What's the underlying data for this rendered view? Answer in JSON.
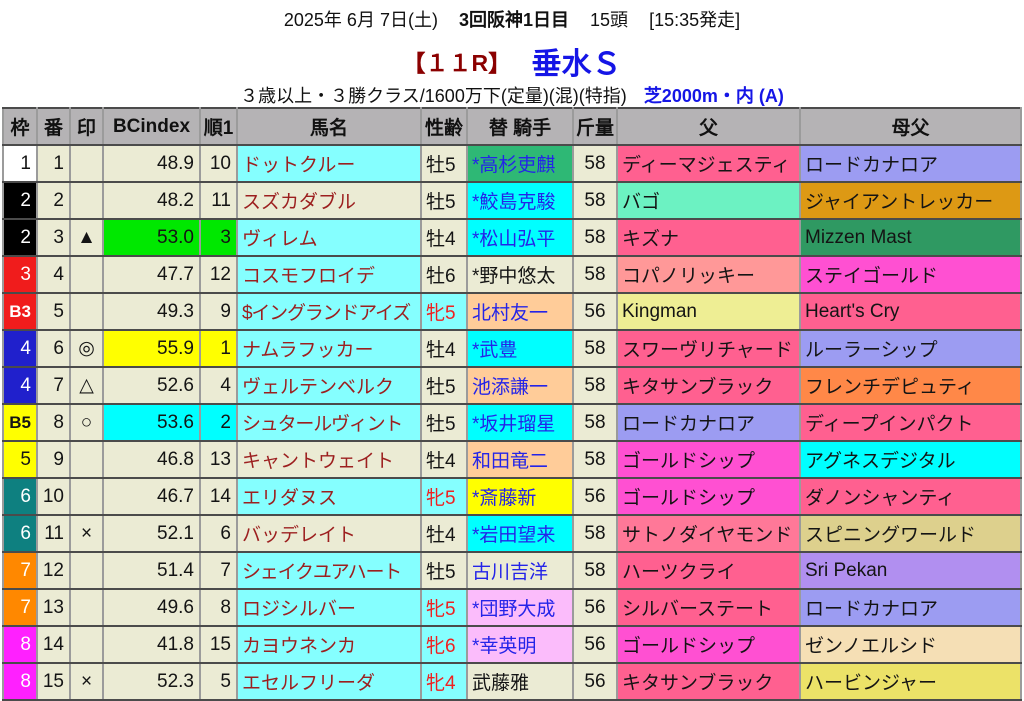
{
  "header": {
    "date": "2025年 6月 7日(土)",
    "meeting": "3回阪神1日目",
    "head_count": "15頭",
    "start_time": "[15:35発走]",
    "race_no": "【１１R】",
    "race_name": "垂水Ｓ",
    "conditions": "３歳以上・３勝クラス/1600万下(定量)(混)(特指)",
    "course": "芝2000m・内 (A)"
  },
  "colors": {
    "beige": "#ebebd4",
    "headerGray": "#b5b3b5",
    "cyanL": "#85ffff",
    "cyan": "#00ffff",
    "green": "#00e800",
    "yellow": "#ffff00",
    "peach": "#ffcc99",
    "pinkJ": "#fbbcfb",
    "greenJ": "#2eb875",
    "pink": "#ff6090",
    "pinkL": "#ff7898",
    "magentaP": "#ff50d2",
    "salmon": "#ff9898",
    "mint": "#6cf2c2",
    "paleYellow": "#eeee94",
    "periwinkle": "#9c9cf2",
    "goldenrod": "#dd9914",
    "seagreen": "#2f9962",
    "orangeS": "#ff8848",
    "khaki": "#ddd08d",
    "purpleS": "#b18ff0",
    "wheat": "#f5dfb5",
    "yellowS": "#ece268",
    "wakuWhite": "#ffffff",
    "wakuBlack": "#000000",
    "wakuRed": "#f01c1c",
    "wakuBlue": "#2020cc",
    "wakuYellow": "#ffff00",
    "wakuGreen": "#0e8080",
    "wakuOrange": "#ff8800",
    "wakuPink": "#ff20ff",
    "white": "#ffffff",
    "textMaroon": "#9c1f1f",
    "textBlue": "#2424e8",
    "textRed": "#f02020",
    "textBlack": "#141414",
    "titleRed": "#8b0000",
    "titleBlue": "#1515e6"
  },
  "table": {
    "columns": [
      "枠",
      "番",
      "印",
      "BCindex",
      "順1",
      "馬名",
      "性齢",
      "替 騎手",
      "斤量",
      "父",
      "母父"
    ],
    "column_names": [
      "frame",
      "number",
      "mark",
      "bcindex",
      "rank",
      "horse-name",
      "sex-age",
      "jockey",
      "weight",
      "sire",
      "dam-sire"
    ],
    "rows": [
      {
        "waku": {
          "t": "1",
          "bg": "wakuWhite",
          "fg": "textBlack"
        },
        "num": "1",
        "mark": "",
        "bc": {
          "t": "48.9",
          "bg": null
        },
        "rank": {
          "t": "10",
          "bg": null
        },
        "name": {
          "t": "ドットクルー",
          "bg": "cyanL"
        },
        "sexage": {
          "t": "牡5",
          "female": false
        },
        "jockey": {
          "t": "*高杉吏麒",
          "bg": "greenJ",
          "fg": "textBlue"
        },
        "weight": "58",
        "sire": {
          "t": "ディーマジェスティ",
          "bg": "pink"
        },
        "damsire": {
          "t": "ロードカナロア",
          "bg": "periwinkle"
        }
      },
      {
        "waku": {
          "t": "2",
          "bg": "wakuBlack",
          "fg": "white"
        },
        "num": "2",
        "mark": "",
        "bc": {
          "t": "48.2",
          "bg": null
        },
        "rank": {
          "t": "11",
          "bg": null
        },
        "name": {
          "t": "スズカダブル",
          "bg": null
        },
        "sexage": {
          "t": "牡5",
          "female": false
        },
        "jockey": {
          "t": "*鮫島克駿",
          "bg": "cyan",
          "fg": "textBlue"
        },
        "weight": "58",
        "sire": {
          "t": "バゴ",
          "bg": "mint"
        },
        "damsire": {
          "t": "ジャイアントレッカー",
          "bg": "goldenrod"
        }
      },
      {
        "waku": {
          "t": "2",
          "bg": "wakuBlack",
          "fg": "white"
        },
        "num": "3",
        "mark": "▲",
        "bc": {
          "t": "53.0",
          "bg": "green"
        },
        "rank": {
          "t": "3",
          "bg": "green"
        },
        "name": {
          "t": "ヴィレム",
          "bg": "cyanL"
        },
        "sexage": {
          "t": "牡4",
          "female": false
        },
        "jockey": {
          "t": "*松山弘平",
          "bg": "cyan",
          "fg": "textBlue"
        },
        "weight": "58",
        "sire": {
          "t": "キズナ",
          "bg": "pink"
        },
        "damsire": {
          "t": "Mizzen Mast",
          "bg": "seagreen"
        }
      },
      {
        "waku": {
          "t": "3",
          "bg": "wakuRed",
          "fg": "white"
        },
        "num": "4",
        "mark": "",
        "bc": {
          "t": "47.7",
          "bg": null
        },
        "rank": {
          "t": "12",
          "bg": null
        },
        "name": {
          "t": "コスモフロイデ",
          "bg": "cyanL"
        },
        "sexage": {
          "t": "牡6",
          "female": false
        },
        "jockey": {
          "t": "*野中悠太",
          "bg": null,
          "fg": "textBlack"
        },
        "weight": "58",
        "sire": {
          "t": "コパノリッキー",
          "bg": "salmon"
        },
        "damsire": {
          "t": "ステイゴールド",
          "bg": "magentaP"
        }
      },
      {
        "waku": {
          "t": "B3",
          "bg": "wakuRed",
          "fg": "white"
        },
        "num": "5",
        "mark": "",
        "bc": {
          "t": "49.3",
          "bg": null
        },
        "rank": {
          "t": "9",
          "bg": null
        },
        "name": {
          "t": "$イングランドアイズ",
          "bg": "cyanL"
        },
        "sexage": {
          "t": "牝5",
          "female": true
        },
        "jockey": {
          "t": "北村友一",
          "bg": "peach",
          "fg": "textBlue"
        },
        "weight": "56",
        "sire": {
          "t": "Kingman",
          "bg": "paleYellow"
        },
        "damsire": {
          "t": "Heart's Cry",
          "bg": "pink"
        }
      },
      {
        "waku": {
          "t": "4",
          "bg": "wakuBlue",
          "fg": "white"
        },
        "num": "6",
        "mark": "◎",
        "bc": {
          "t": "55.9",
          "bg": "yellow"
        },
        "rank": {
          "t": "1",
          "bg": "yellow"
        },
        "name": {
          "t": "ナムラフッカー",
          "bg": "cyanL"
        },
        "sexage": {
          "t": "牡4",
          "female": false
        },
        "jockey": {
          "t": "*武豊",
          "bg": "cyan",
          "fg": "textBlue"
        },
        "weight": "58",
        "sire": {
          "t": "スワーヴリチャード",
          "bg": "pink"
        },
        "damsire": {
          "t": "ルーラーシップ",
          "bg": "periwinkle"
        }
      },
      {
        "waku": {
          "t": "4",
          "bg": "wakuBlue",
          "fg": "white"
        },
        "num": "7",
        "mark": "△",
        "bc": {
          "t": "52.6",
          "bg": null
        },
        "rank": {
          "t": "4",
          "bg": null
        },
        "name": {
          "t": "ヴェルテンベルク",
          "bg": "cyanL"
        },
        "sexage": {
          "t": "牡5",
          "female": false
        },
        "jockey": {
          "t": "池添謙一",
          "bg": "peach",
          "fg": "textBlue"
        },
        "weight": "58",
        "sire": {
          "t": "キタサンブラック",
          "bg": "pink"
        },
        "damsire": {
          "t": "フレンチデピュティ",
          "bg": "orangeS"
        }
      },
      {
        "waku": {
          "t": "B5",
          "bg": "wakuYellow",
          "fg": "textBlack"
        },
        "num": "8",
        "mark": "○",
        "bc": {
          "t": "53.6",
          "bg": "cyan"
        },
        "rank": {
          "t": "2",
          "bg": "cyan"
        },
        "name": {
          "t": "シュタールヴィント",
          "bg": "cyanL"
        },
        "sexage": {
          "t": "牡5",
          "female": false
        },
        "jockey": {
          "t": "*坂井瑠星",
          "bg": "cyan",
          "fg": "textBlue"
        },
        "weight": "58",
        "sire": {
          "t": "ロードカナロア",
          "bg": "periwinkle"
        },
        "damsire": {
          "t": "ディープインパクト",
          "bg": "pink"
        }
      },
      {
        "waku": {
          "t": "5",
          "bg": "wakuYellow",
          "fg": "textBlack"
        },
        "num": "9",
        "mark": "",
        "bc": {
          "t": "46.8",
          "bg": null
        },
        "rank": {
          "t": "13",
          "bg": null
        },
        "name": {
          "t": "キャントウェイト",
          "bg": null
        },
        "sexage": {
          "t": "牡4",
          "female": false
        },
        "jockey": {
          "t": "和田竜二",
          "bg": "peach",
          "fg": "textBlue"
        },
        "weight": "58",
        "sire": {
          "t": "ゴールドシップ",
          "bg": "magentaP"
        },
        "damsire": {
          "t": "アグネスデジタル",
          "bg": "cyan"
        }
      },
      {
        "waku": {
          "t": "6",
          "bg": "wakuGreen",
          "fg": "white"
        },
        "num": "10",
        "mark": "",
        "bc": {
          "t": "46.7",
          "bg": null
        },
        "rank": {
          "t": "14",
          "bg": null
        },
        "name": {
          "t": "エリダヌス",
          "bg": "cyanL"
        },
        "sexage": {
          "t": "牝5",
          "female": true
        },
        "jockey": {
          "t": "*斎藤新",
          "bg": "yellow",
          "fg": "textBlue"
        },
        "weight": "56",
        "sire": {
          "t": "ゴールドシップ",
          "bg": "magentaP"
        },
        "damsire": {
          "t": "ダノンシャンティ",
          "bg": "pink"
        }
      },
      {
        "waku": {
          "t": "6",
          "bg": "wakuGreen",
          "fg": "white"
        },
        "num": "11",
        "mark": "×",
        "bc": {
          "t": "52.1",
          "bg": null
        },
        "rank": {
          "t": "6",
          "bg": null
        },
        "name": {
          "t": "バッデレイト",
          "bg": null
        },
        "sexage": {
          "t": "牡4",
          "female": false
        },
        "jockey": {
          "t": "*岩田望来",
          "bg": "cyan",
          "fg": "textBlue"
        },
        "weight": "58",
        "sire": {
          "t": "サトノダイヤモンド",
          "bg": "pinkL"
        },
        "damsire": {
          "t": "スピニングワールド",
          "bg": "khaki"
        }
      },
      {
        "waku": {
          "t": "7",
          "bg": "wakuOrange",
          "fg": "white"
        },
        "num": "12",
        "mark": "",
        "bc": {
          "t": "51.4",
          "bg": null
        },
        "rank": {
          "t": "7",
          "bg": null
        },
        "name": {
          "t": "シェイクユアハート",
          "bg": "cyanL"
        },
        "sexage": {
          "t": "牡5",
          "female": false
        },
        "jockey": {
          "t": "古川吉洋",
          "bg": null,
          "fg": "textBlue"
        },
        "weight": "58",
        "sire": {
          "t": "ハーツクライ",
          "bg": "pink"
        },
        "damsire": {
          "t": "Sri Pekan",
          "bg": "purpleS"
        }
      },
      {
        "waku": {
          "t": "7",
          "bg": "wakuOrange",
          "fg": "white"
        },
        "num": "13",
        "mark": "",
        "bc": {
          "t": "49.6",
          "bg": null
        },
        "rank": {
          "t": "8",
          "bg": null
        },
        "name": {
          "t": "ロジシルバー",
          "bg": "cyanL"
        },
        "sexage": {
          "t": "牝5",
          "female": true
        },
        "jockey": {
          "t": "*団野大成",
          "bg": "pinkJ",
          "fg": "textBlue"
        },
        "weight": "56",
        "sire": {
          "t": "シルバーステート",
          "bg": "pink"
        },
        "damsire": {
          "t": "ロードカナロア",
          "bg": "periwinkle"
        }
      },
      {
        "waku": {
          "t": "8",
          "bg": "wakuPink",
          "fg": "white"
        },
        "num": "14",
        "mark": "",
        "bc": {
          "t": "41.8",
          "bg": null
        },
        "rank": {
          "t": "15",
          "bg": null
        },
        "name": {
          "t": "カヨウネンカ",
          "bg": "cyanL"
        },
        "sexage": {
          "t": "牝6",
          "female": true
        },
        "jockey": {
          "t": "*幸英明",
          "bg": "pinkJ",
          "fg": "textBlue"
        },
        "weight": "56",
        "sire": {
          "t": "ゴールドシップ",
          "bg": "magentaP"
        },
        "damsire": {
          "t": "ゼンノエルシド",
          "bg": "wheat"
        }
      },
      {
        "waku": {
          "t": "8",
          "bg": "wakuPink",
          "fg": "white"
        },
        "num": "15",
        "mark": "×",
        "bc": {
          "t": "52.3",
          "bg": null
        },
        "rank": {
          "t": "5",
          "bg": null
        },
        "name": {
          "t": "エセルフリーダ",
          "bg": "cyanL"
        },
        "sexage": {
          "t": "牝4",
          "female": true
        },
        "jockey": {
          "t": "武藤雅",
          "bg": null,
          "fg": "textBlack"
        },
        "weight": "56",
        "sire": {
          "t": "キタサンブラック",
          "bg": "pink"
        },
        "damsire": {
          "t": "ハービンジャー",
          "bg": "yellowS"
        }
      }
    ]
  }
}
